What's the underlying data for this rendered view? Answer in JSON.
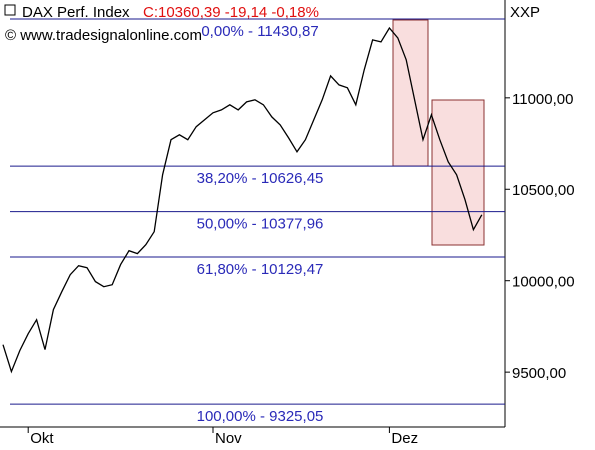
{
  "chart_data": {
    "type": "line",
    "title": "DAX Perf. Index",
    "quote": "C:10360,39 -19,14 -0,18%",
    "source": "© www.tradesignalonline.com",
    "symbol": "XXP",
    "color": "#000000",
    "categories": [
      null,
      null,
      null,
      "Okt",
      null,
      null,
      null,
      null,
      null,
      null,
      null,
      null,
      null,
      null,
      null,
      null,
      null,
      null,
      null,
      null,
      null,
      null,
      null,
      null,
      null,
      "Nov",
      null,
      null,
      null,
      null,
      null,
      null,
      null,
      null,
      null,
      null,
      null,
      null,
      null,
      null,
      null,
      null,
      null,
      null,
      null,
      null,
      "Dez",
      null,
      null,
      null,
      null,
      null,
      null,
      null,
      null,
      null,
      null,
      null
    ],
    "values": [
      9650,
      9503,
      9618,
      9710,
      9787,
      9623,
      9842,
      9940,
      10033,
      10082,
      10071,
      9995,
      9967,
      9978,
      10088,
      10164,
      10148,
      10197,
      10268,
      10579,
      10771,
      10798,
      10771,
      10842,
      10880,
      10918,
      10934,
      10962,
      10934,
      10978,
      10989,
      10962,
      10896,
      10852,
      10781,
      10705,
      10771,
      10880,
      10989,
      11120,
      11071,
      11055,
      10962,
      11153,
      11317,
      11306,
      11382,
      11328,
      11208,
      10989,
      10771,
      10907,
      10771,
      10650,
      10579,
      10443,
      10279,
      10360.39
    ],
    "levels": [
      {
        "value": 11430.87,
        "label": "0,00% - 11430,87"
      },
      {
        "value": 10626.45,
        "label": "38,20% - 10626,45"
      },
      {
        "value": 10377.96,
        "label": "50,00% - 10377,96"
      },
      {
        "value": 10129.47,
        "label": "61,80% - 10129,47"
      },
      {
        "value": 9325.05,
        "label": "100,00% - 9325,05"
      }
    ],
    "ylim": [
      9200,
      11535
    ],
    "yticks": [
      {
        "value": 9500,
        "label": "9500,00"
      },
      {
        "value": 10000,
        "label": "10000,00"
      },
      {
        "value": 10500,
        "label": "10500,00"
      },
      {
        "value": 11000,
        "label": "11000,00"
      }
    ]
  }
}
